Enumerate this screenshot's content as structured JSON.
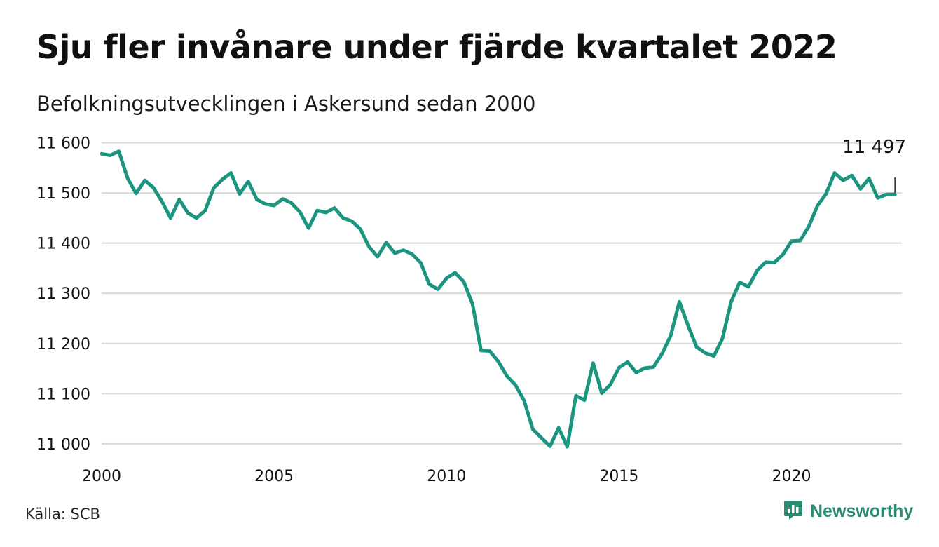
{
  "title": "Sju fler invånare under fjärde kvartalet 2022",
  "subtitle": "Befolkningsutvecklingen i Askersund sedan 2000",
  "source": "Källa: SCB",
  "brand": {
    "name": "Newsworthy",
    "icon": "bar-chart-speech-bubble-icon",
    "color": "#2e8b73"
  },
  "colors": {
    "line": "#1b9480",
    "grid": "#d9d9d9",
    "text": "#111111"
  },
  "chart_data": {
    "type": "line",
    "title": "Sju fler invånare under fjärde kvartalet 2022",
    "subtitle": "Befolkningsutvecklingen i Askersund sedan 2000",
    "xlabel": "",
    "ylabel": "",
    "xlim": [
      2000,
      2023.2
    ],
    "ylim": [
      10990,
      11605
    ],
    "x_ticks": [
      {
        "value": 2000,
        "label": "2000"
      },
      {
        "value": 2005,
        "label": "2005"
      },
      {
        "value": 2010,
        "label": "2010"
      },
      {
        "value": 2015,
        "label": "2015"
      },
      {
        "value": 2020,
        "label": "2020"
      }
    ],
    "y_ticks": [
      {
        "value": 11600,
        "label": "11 600"
      },
      {
        "value": 11500,
        "label": "11 500"
      },
      {
        "value": 11400,
        "label": "11 400"
      },
      {
        "value": 11300,
        "label": "11 300"
      },
      {
        "value": 11200,
        "label": "11 200"
      },
      {
        "value": 11100,
        "label": "11 100"
      },
      {
        "value": 11000,
        "label": "11 000"
      }
    ],
    "grid": true,
    "legend": "none",
    "annotation": {
      "text": "11 497",
      "x": 2023.0,
      "y": 11497
    },
    "series": [
      {
        "x": [
          2000.0,
          2000.25,
          2000.5,
          2000.75,
          2001.0,
          2001.25,
          2001.5,
          2001.75,
          2002.0,
          2002.25,
          2002.5,
          2002.75,
          2003.0,
          2003.25,
          2003.5,
          2003.75,
          2004.0,
          2004.25,
          2004.5,
          2004.75,
          2005.0,
          2005.25,
          2005.5,
          2005.75,
          2006.0,
          2006.25,
          2006.5,
          2006.75,
          2007.0,
          2007.25,
          2007.5,
          2007.75,
          2008.0,
          2008.25,
          2008.5,
          2008.75,
          2009.0,
          2009.25,
          2009.5,
          2009.75,
          2010.0,
          2010.25,
          2010.5,
          2010.75,
          2011.0,
          2011.25,
          2011.5,
          2011.75,
          2012.0,
          2012.25,
          2012.5,
          2012.75,
          2013.0,
          2013.25,
          2013.5,
          2013.75,
          2014.0,
          2014.25,
          2014.5,
          2014.75,
          2015.0,
          2015.25,
          2015.5,
          2015.75,
          2016.0,
          2016.25,
          2016.5,
          2016.75,
          2017.0,
          2017.25,
          2017.5,
          2017.75,
          2018.0,
          2018.25,
          2018.5,
          2018.75,
          2019.0,
          2019.25,
          2019.5,
          2019.75,
          2020.0,
          2020.25,
          2020.5,
          2020.75,
          2021.0,
          2021.25,
          2021.5,
          2021.75,
          2022.0,
          2022.25,
          2022.5,
          2022.75,
          2023.0
        ],
        "values": [
          11578,
          11575,
          11583,
          11530,
          11499,
          11525,
          11511,
          11483,
          11450,
          11487,
          11460,
          11450,
          11465,
          11510,
          11527,
          11540,
          11498,
          11523,
          11487,
          11478,
          11475,
          11488,
          11480,
          11462,
          11430,
          11465,
          11461,
          11470,
          11450,
          11444,
          11428,
          11393,
          11373,
          11401,
          11380,
          11386,
          11378,
          11361,
          11318,
          11308,
          11330,
          11341,
          11323,
          11279,
          11186,
          11185,
          11164,
          11135,
          11117,
          11086,
          11029,
          11012,
          10995,
          11032,
          10994,
          11096,
          11087,
          11161,
          11101,
          11118,
          11152,
          11163,
          11142,
          11151,
          11153,
          11180,
          11216,
          11283,
          11236,
          11193,
          11181,
          11175,
          11210,
          11283,
          11322,
          11313,
          11345,
          11362,
          11361,
          11377,
          11404,
          11405,
          11433,
          11474,
          11498,
          11540,
          11525,
          11535,
          11508,
          11529,
          11490,
          11497,
          11497
        ]
      }
    ]
  }
}
